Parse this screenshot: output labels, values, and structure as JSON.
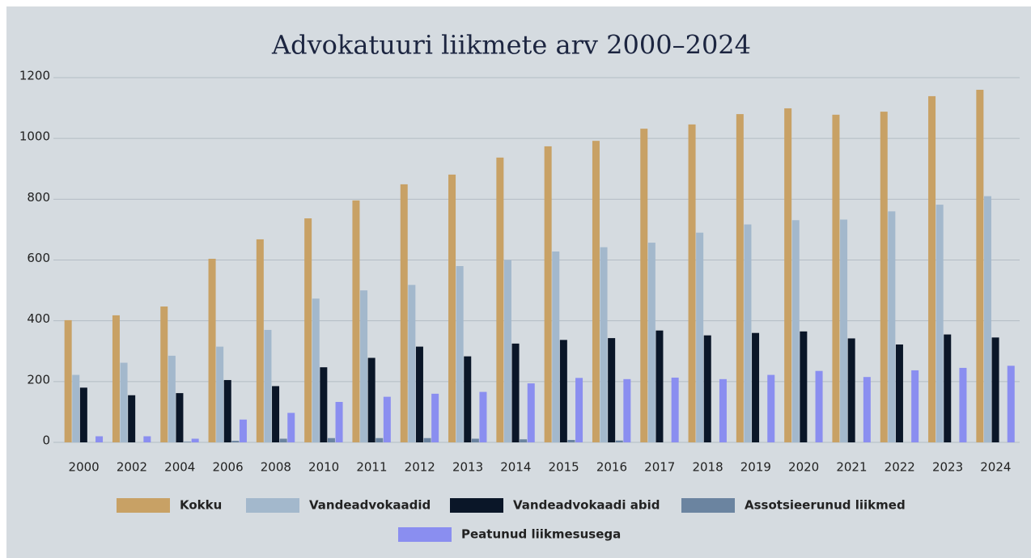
{
  "chart_data": {
    "type": "bar",
    "title": "Advokatuuri liikmete arv 2000–2024",
    "categories": [
      "2000",
      "2002",
      "2004",
      "2006",
      "2008",
      "2010",
      "2011",
      "2012",
      "2013",
      "2014",
      "2015",
      "2016",
      "2017",
      "2018",
      "2019",
      "2020",
      "2021",
      "2022",
      "2023",
      "2024"
    ],
    "series": [
      {
        "name": "Kokku",
        "color": "#c8a165",
        "values": [
          402,
          418,
          447,
          604,
          668,
          737,
          796,
          849,
          881,
          937,
          974,
          992,
          1032,
          1046,
          1080,
          1099,
          1078,
          1088,
          1139,
          1160
        ]
      },
      {
        "name": "Vandeadvokaadid",
        "color": "#a3b8cc",
        "values": [
          222,
          262,
          285,
          315,
          370,
          473,
          500,
          518,
          580,
          600,
          628,
          642,
          657,
          690,
          717,
          731,
          733,
          760,
          782,
          810
        ]
      },
      {
        "name": "Vandeadvokaadi abid",
        "color": "#0a1628",
        "values": [
          180,
          155,
          162,
          205,
          185,
          247,
          278,
          315,
          283,
          325,
          337,
          343,
          368,
          352,
          360,
          365,
          342,
          322,
          355,
          345
        ]
      },
      {
        "name": "Assotsieerunud liikmed",
        "color": "#6b84a0",
        "values": [
          0,
          0,
          2,
          5,
          12,
          14,
          14,
          14,
          12,
          10,
          8,
          6,
          0,
          0,
          0,
          0,
          0,
          0,
          0,
          0
        ]
      },
      {
        "name": "Peatunud liikmesusega",
        "color": "#8a8ef0",
        "values": [
          20,
          20,
          12,
          75,
          97,
          133,
          150,
          160,
          166,
          194,
          212,
          208,
          213,
          208,
          222,
          235,
          215,
          237,
          245,
          252
        ]
      }
    ],
    "ylim": [
      0,
      1200
    ],
    "yticks": [
      0,
      200,
      400,
      600,
      800,
      1000,
      1200
    ],
    "grid": true
  }
}
